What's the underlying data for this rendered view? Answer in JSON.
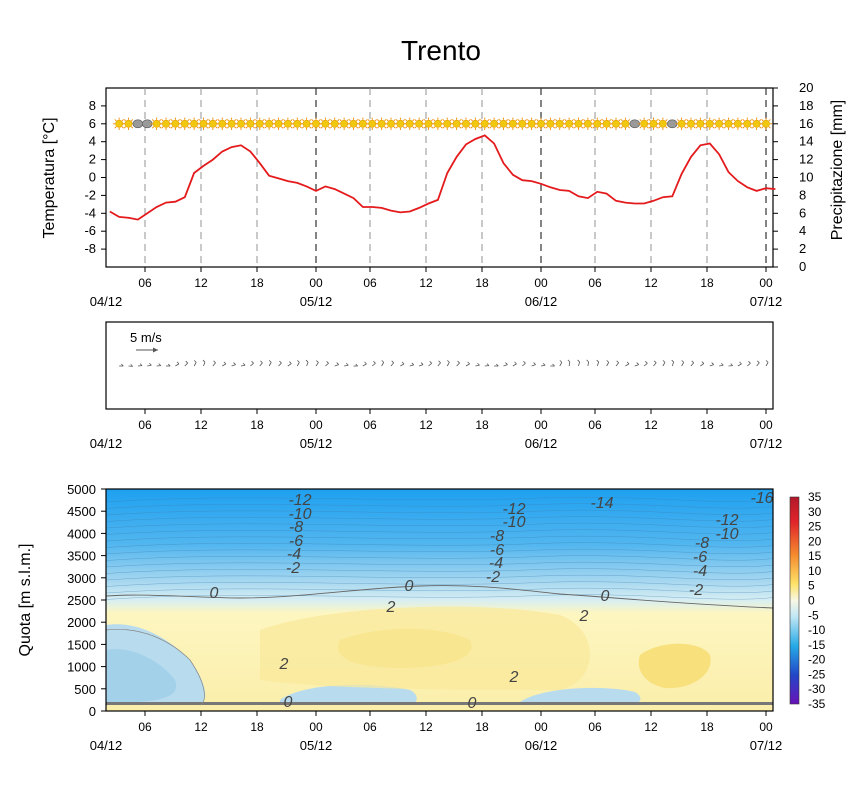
{
  "title": "Trento",
  "time_axis": {
    "hour_ticks": [
      "06",
      "12",
      "18",
      "00",
      "06",
      "12",
      "18",
      "00",
      "06",
      "12",
      "18",
      "00"
    ],
    "date_labels": [
      "04/12",
      "05/12",
      "06/12",
      "07/12"
    ]
  },
  "chart_data": [
    {
      "type": "line",
      "ylabel_left": "Temperatura [°C]",
      "ylabel_right": "Precipitazione [mm]",
      "ylim_left": [
        -10,
        10
      ],
      "ylim_right": [
        0,
        20
      ],
      "yticks_left": [
        "8",
        "6",
        "4",
        "2",
        "0",
        "-2",
        "-4",
        "-6",
        "-8"
      ],
      "yticks_right": [
        "20",
        "18",
        "16",
        "14",
        "12",
        "10",
        "8",
        "6",
        "4",
        "2",
        "0"
      ],
      "series": [
        {
          "color": "#e41a1c",
          "x_hours": [
            0,
            1,
            2,
            3,
            4,
            5,
            6,
            7,
            8,
            9,
            10,
            11,
            12,
            13,
            14,
            15,
            16,
            17,
            18,
            19,
            20,
            21,
            22,
            23,
            24,
            25,
            26,
            27,
            28,
            29,
            30,
            31,
            32,
            33,
            34,
            35,
            36,
            37,
            38,
            39,
            40,
            41,
            42,
            43,
            44,
            45,
            46,
            47,
            48,
            49,
            50,
            51,
            52,
            53,
            54,
            55,
            56,
            57,
            58,
            59,
            60,
            61,
            62,
            63,
            64,
            65,
            66,
            67,
            68,
            69,
            70,
            71
          ],
          "values": [
            -3.8,
            -4.4,
            -4.5,
            -4.7,
            -4.0,
            -3.3,
            -2.8,
            -2.7,
            -2.2,
            0.5,
            1.3,
            2.0,
            2.9,
            3.4,
            3.6,
            2.9,
            1.6,
            0.2,
            -0.1,
            -0.4,
            -0.6,
            -1.0,
            -1.5,
            -1.0,
            -1.3,
            -1.8,
            -2.3,
            -3.3,
            -3.3,
            -3.4,
            -3.7,
            -3.9,
            -3.8,
            -3.4,
            -2.9,
            -2.5,
            0.5,
            2.3,
            3.7,
            4.3,
            4.7,
            3.8,
            1.6,
            0.3,
            -0.3,
            -0.4,
            -0.7,
            -1.1,
            -1.4,
            -1.5,
            -2.1,
            -2.3,
            -1.6,
            -1.8,
            -2.6,
            -2.8,
            -2.9,
            -2.9,
            -2.6,
            -2.2,
            -2.1,
            0.4,
            2.3,
            3.6,
            3.8,
            2.6,
            0.6,
            -0.4,
            -1.1,
            -1.5,
            -1.2,
            -1.3
          ]
        }
      ],
      "weather_strip": {
        "y_value": 6,
        "sun_color": "#f2c80f",
        "cloud_color": "#9a9a9a",
        "cloud_hours": [
          3,
          4,
          56,
          60
        ]
      }
    },
    {
      "type": "scatter",
      "name_label": "5 m/s",
      "wind_barbs": {
        "x_hours": [
          0,
          1,
          2,
          3,
          4,
          5,
          6,
          7,
          8,
          9,
          10,
          11,
          12,
          13,
          14,
          15,
          16,
          17,
          18,
          19,
          20,
          21,
          22,
          23,
          24,
          25,
          26,
          27,
          28,
          29,
          30,
          31,
          32,
          33,
          34,
          35,
          36,
          37,
          38,
          39,
          40,
          41,
          42,
          43,
          44,
          45,
          46,
          47,
          48,
          49,
          50,
          51,
          52,
          53,
          54,
          55,
          56,
          57,
          58,
          59,
          60,
          61,
          62,
          63,
          64,
          65,
          66,
          67,
          68,
          69,
          70,
          71
        ],
        "dir_deg": [
          80,
          90,
          85,
          95,
          100,
          95,
          90,
          120,
          135,
          150,
          160,
          140,
          120,
          110,
          100,
          130,
          140,
          150,
          135,
          125,
          150,
          160,
          145,
          130,
          110,
          100,
          90,
          120,
          130,
          150,
          140,
          120,
          105,
          110,
          130,
          140,
          150,
          135,
          120,
          100,
          95,
          90,
          110,
          120,
          130,
          110,
          100,
          90,
          150,
          170,
          165,
          170,
          160,
          150,
          140,
          120,
          110,
          130,
          140,
          150,
          160,
          150,
          140,
          125,
          110,
          100,
          95,
          120,
          130,
          140,
          150,
          160
        ]
      }
    },
    {
      "type": "heatmap",
      "ylabel": "Quota [m s.l.m.]",
      "ylim": [
        0,
        5000
      ],
      "yticks": [
        "5000",
        "4500",
        "4000",
        "3500",
        "3000",
        "2500",
        "2000",
        "1500",
        "1000",
        "500",
        "0"
      ],
      "colorbar_ticks": [
        "35",
        "30",
        "25",
        "20",
        "15",
        "10",
        "5",
        "0",
        "-5",
        "-10",
        "-15",
        "-20",
        "-25",
        "-30",
        "-35"
      ],
      "contour_labels": [
        "-12",
        "-10",
        "-8",
        "-6",
        "-4",
        "-2",
        "0",
        "2",
        "2",
        "0",
        "-12",
        "-10",
        "-8",
        "-6",
        "-4",
        "-2",
        "0",
        "2",
        "2",
        "0",
        "-14",
        "-16",
        "-12",
        "-10",
        "-8",
        "-6",
        "-4",
        "-2",
        "0"
      ]
    }
  ]
}
